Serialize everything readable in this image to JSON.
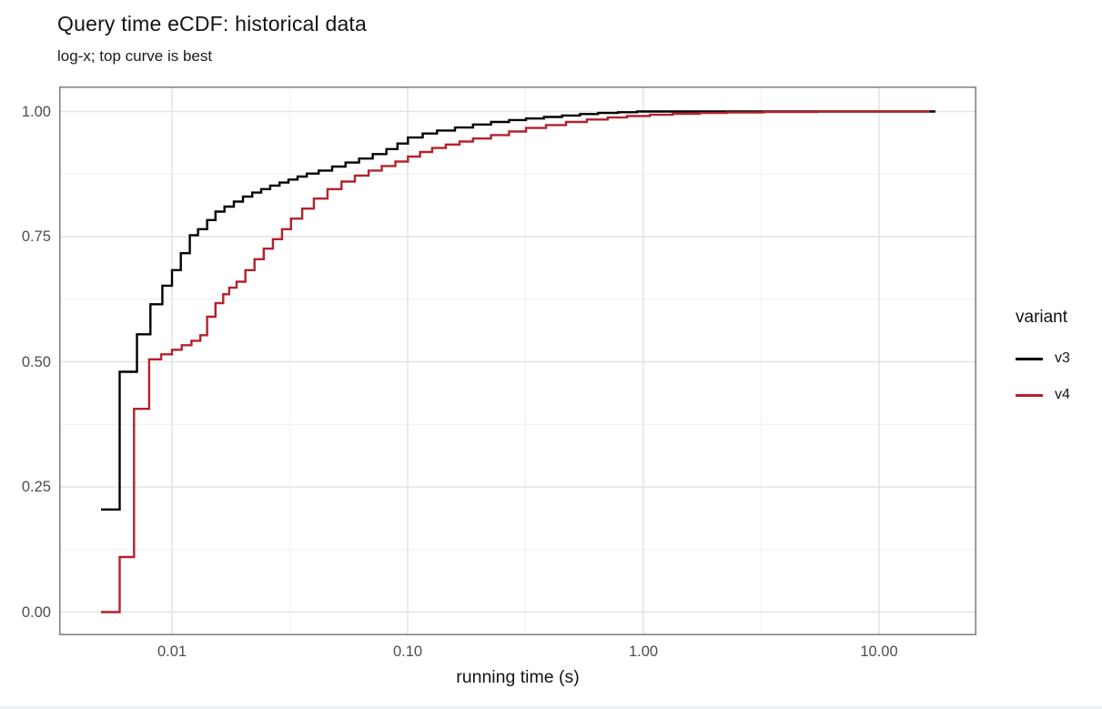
{
  "title": "Query time eCDF: historical data",
  "subtitle": "log-x; top curve is best",
  "x_axis": {
    "label": "running time (s)",
    "scale": "log10",
    "tick_labels": [
      "0.01",
      "0.10",
      "1.00",
      "10.00"
    ],
    "tick_values": [
      0.01,
      0.1,
      1.0,
      10.0
    ],
    "minor_tick_values": [
      0.0316,
      0.316,
      3.16
    ],
    "range": [
      0.0033,
      26.2
    ]
  },
  "y_axis": {
    "label": "",
    "tick_labels": [
      "0.00",
      "0.25",
      "0.50",
      "0.75",
      "1.00"
    ],
    "tick_values": [
      0.0,
      0.25,
      0.5,
      0.75,
      1.0
    ],
    "minor_tick_values": [
      0.125,
      0.375,
      0.625,
      0.875
    ],
    "range": [
      -0.05,
      1.05
    ]
  },
  "legend": {
    "title": "variant",
    "entries": [
      {
        "label": "v3",
        "color": "#000000"
      },
      {
        "label": "v4",
        "color": "#B3222C"
      }
    ]
  },
  "style": {
    "panel_border_color": "#858585",
    "grid_major_color": "#e3e3e3",
    "grid_minor_color": "#efefef",
    "tick_label_color": "#4d4d4d",
    "text_color": "#131313",
    "line_width": 2.4
  },
  "chart_data": {
    "type": "line",
    "subtype": "ecdf-step",
    "title": "Query time eCDF: historical data",
    "subtitle": "log-x; top curve is best",
    "xlabel": "running time (s)",
    "ylabel": "",
    "x_scale": "log10",
    "xlim": [
      0.0033,
      26.2
    ],
    "ylim": [
      -0.05,
      1.05
    ],
    "grid": true,
    "legend_position": "right",
    "legend_title": "variant",
    "series": [
      {
        "name": "v3",
        "color": "#000000",
        "points": [
          [
            0.005,
            0.205
          ],
          [
            0.006,
            0.48
          ],
          [
            0.0071,
            0.555
          ],
          [
            0.0081,
            0.615
          ],
          [
            0.0091,
            0.652
          ],
          [
            0.01,
            0.683
          ],
          [
            0.0109,
            0.717
          ],
          [
            0.0119,
            0.753
          ],
          [
            0.0129,
            0.765
          ],
          [
            0.0141,
            0.783
          ],
          [
            0.0153,
            0.8
          ],
          [
            0.0167,
            0.81
          ],
          [
            0.0183,
            0.82
          ],
          [
            0.02,
            0.83
          ],
          [
            0.0219,
            0.838
          ],
          [
            0.0239,
            0.845
          ],
          [
            0.0261,
            0.852
          ],
          [
            0.0286,
            0.858
          ],
          [
            0.0312,
            0.864
          ],
          [
            0.0341,
            0.87
          ],
          [
            0.0373,
            0.876
          ],
          [
            0.0419,
            0.882
          ],
          [
            0.0478,
            0.89
          ],
          [
            0.0545,
            0.898
          ],
          [
            0.0622,
            0.906
          ],
          [
            0.0711,
            0.915
          ],
          [
            0.0812,
            0.925
          ],
          [
            0.0905,
            0.936
          ],
          [
            0.1003,
            0.948
          ],
          [
            0.1158,
            0.956
          ],
          [
            0.1332,
            0.962
          ],
          [
            0.1588,
            0.968
          ],
          [
            0.1894,
            0.974
          ],
          [
            0.2258,
            0.979
          ],
          [
            0.2693,
            0.983
          ],
          [
            0.3177,
            0.986
          ],
          [
            0.3788,
            0.989
          ],
          [
            0.4517,
            0.992
          ],
          [
            0.5386,
            0.995
          ],
          [
            0.6423,
            0.997
          ],
          [
            0.7805,
            0.9985
          ],
          [
            0.9397,
            1.0
          ],
          [
            17.35,
            1.0
          ]
        ]
      },
      {
        "name": "v4",
        "color": "#B3222C",
        "points": [
          [
            0.005,
            0.0
          ],
          [
            0.006,
            0.11
          ],
          [
            0.0069,
            0.406
          ],
          [
            0.008,
            0.505
          ],
          [
            0.009,
            0.515
          ],
          [
            0.01,
            0.524
          ],
          [
            0.011,
            0.533
          ],
          [
            0.0121,
            0.542
          ],
          [
            0.0132,
            0.553
          ],
          [
            0.0141,
            0.59
          ],
          [
            0.0153,
            0.617
          ],
          [
            0.0165,
            0.635
          ],
          [
            0.0175,
            0.648
          ],
          [
            0.0188,
            0.66
          ],
          [
            0.0205,
            0.683
          ],
          [
            0.0224,
            0.705
          ],
          [
            0.0245,
            0.726
          ],
          [
            0.0268,
            0.745
          ],
          [
            0.0293,
            0.765
          ],
          [
            0.032,
            0.786
          ],
          [
            0.0357,
            0.806
          ],
          [
            0.04,
            0.826
          ],
          [
            0.0457,
            0.845
          ],
          [
            0.0524,
            0.86
          ],
          [
            0.0597,
            0.872
          ],
          [
            0.0683,
            0.882
          ],
          [
            0.0776,
            0.891
          ],
          [
            0.0887,
            0.9
          ],
          [
            0.1003,
            0.91
          ],
          [
            0.1129,
            0.919
          ],
          [
            0.127,
            0.927
          ],
          [
            0.1452,
            0.934
          ],
          [
            0.166,
            0.94
          ],
          [
            0.1894,
            0.946
          ],
          [
            0.2258,
            0.953
          ],
          [
            0.2693,
            0.96
          ],
          [
            0.3177,
            0.967
          ],
          [
            0.3863,
            0.973
          ],
          [
            0.4696,
            0.979
          ],
          [
            0.5757,
            0.984
          ],
          [
            0.7056,
            0.988
          ],
          [
            0.8528,
            0.991
          ],
          [
            1.065,
            0.9935
          ],
          [
            1.331,
            0.9955
          ],
          [
            1.736,
            0.997
          ],
          [
            2.264,
            0.998
          ],
          [
            3.234,
            0.999
          ],
          [
            5.5,
            1.0
          ],
          [
            16.4,
            1.0
          ]
        ]
      }
    ]
  }
}
